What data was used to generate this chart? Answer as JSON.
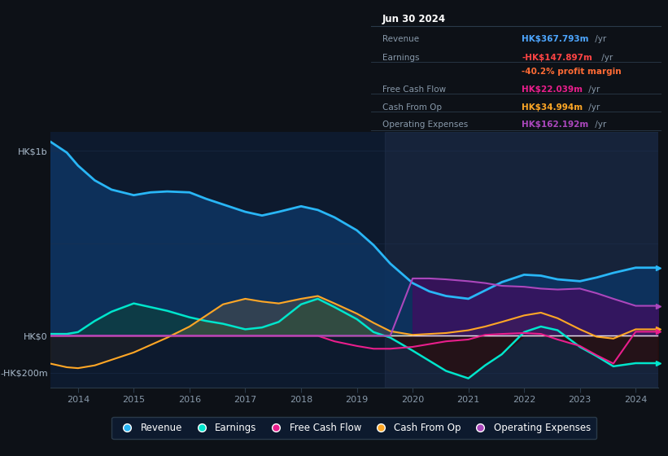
{
  "bg_color": "#0d1117",
  "chart_bg": "#0d1a2e",
  "grid_color": "#1e3050",
  "zero_line_color": "#ffffff",
  "tooltip_date": "Jun 30 2024",
  "tooltip_rows": [
    {
      "label": "Revenue",
      "value": "HK$367.793m /yr",
      "value_color": "#4da6ff"
    },
    {
      "label": "Earnings",
      "value": "-HK$147.897m /yr",
      "value_color": "#ff4444"
    },
    {
      "label": "",
      "value": "-40.2% profit margin",
      "value_color": "#ff6b35"
    },
    {
      "label": "Free Cash Flow",
      "value": "HK$22.039m /yr",
      "value_color": "#e91e8c"
    },
    {
      "label": "Cash From Op",
      "value": "HK$34.994m /yr",
      "value_color": "#ffa726"
    },
    {
      "label": "Operating Expenses",
      "value": "HK$162.192m /yr",
      "value_color": "#ab47bc"
    }
  ],
  "ylim": [
    -280,
    1100
  ],
  "xtick_years": [
    2014,
    2015,
    2016,
    2017,
    2018,
    2019,
    2020,
    2021,
    2022,
    2023,
    2024
  ],
  "years": [
    2013.5,
    2013.8,
    2014.0,
    2014.3,
    2014.6,
    2015.0,
    2015.3,
    2015.6,
    2016.0,
    2016.3,
    2016.6,
    2017.0,
    2017.3,
    2017.6,
    2018.0,
    2018.3,
    2018.6,
    2019.0,
    2019.3,
    2019.6,
    2020.0,
    2020.3,
    2020.6,
    2021.0,
    2021.3,
    2021.6,
    2022.0,
    2022.3,
    2022.6,
    2023.0,
    2023.3,
    2023.6,
    2024.0,
    2024.4
  ],
  "revenue": [
    1050,
    990,
    920,
    840,
    790,
    760,
    775,
    780,
    775,
    740,
    710,
    670,
    650,
    670,
    700,
    680,
    640,
    570,
    490,
    390,
    285,
    240,
    215,
    200,
    245,
    290,
    330,
    325,
    305,
    295,
    315,
    340,
    368,
    368
  ],
  "earnings": [
    10,
    10,
    20,
    80,
    130,
    175,
    155,
    135,
    100,
    80,
    65,
    35,
    45,
    75,
    170,
    200,
    155,
    90,
    20,
    -10,
    -80,
    -135,
    -190,
    -230,
    -160,
    -100,
    20,
    50,
    30,
    -60,
    -110,
    -165,
    -148,
    -148
  ],
  "free_cash_flow": [
    0,
    0,
    0,
    0,
    0,
    0,
    0,
    0,
    0,
    0,
    0,
    0,
    0,
    0,
    0,
    0,
    -30,
    -55,
    -70,
    -70,
    -60,
    -45,
    -30,
    -20,
    5,
    10,
    15,
    10,
    -20,
    -55,
    -105,
    -150,
    22,
    22
  ],
  "cash_from_op": [
    -150,
    -170,
    -175,
    -160,
    -130,
    -90,
    -50,
    -10,
    50,
    110,
    170,
    200,
    185,
    175,
    200,
    215,
    175,
    120,
    70,
    25,
    5,
    10,
    15,
    30,
    50,
    75,
    110,
    125,
    95,
    35,
    -5,
    -15,
    35,
    35
  ],
  "op_expenses": [
    0,
    0,
    0,
    0,
    0,
    0,
    0,
    0,
    0,
    0,
    0,
    0,
    0,
    0,
    0,
    0,
    0,
    0,
    0,
    0,
    310,
    310,
    305,
    295,
    285,
    270,
    265,
    255,
    250,
    255,
    230,
    200,
    162,
    162
  ],
  "revenue_color": "#29b6f6",
  "earnings_color": "#00e5cc",
  "free_cash_flow_color": "#e91e8c",
  "cash_from_op_color": "#ffa726",
  "op_expenses_color": "#ab47bc",
  "revenue_fill": "#0d3360",
  "earnings_fill_pos": "#0d4040",
  "earnings_fill_neg": "#2a0d0d",
  "op_expenses_fill": "#3d1060",
  "cfo_fill_pos": "#3a2800",
  "cfo_fill_neg": "#2a1500"
}
